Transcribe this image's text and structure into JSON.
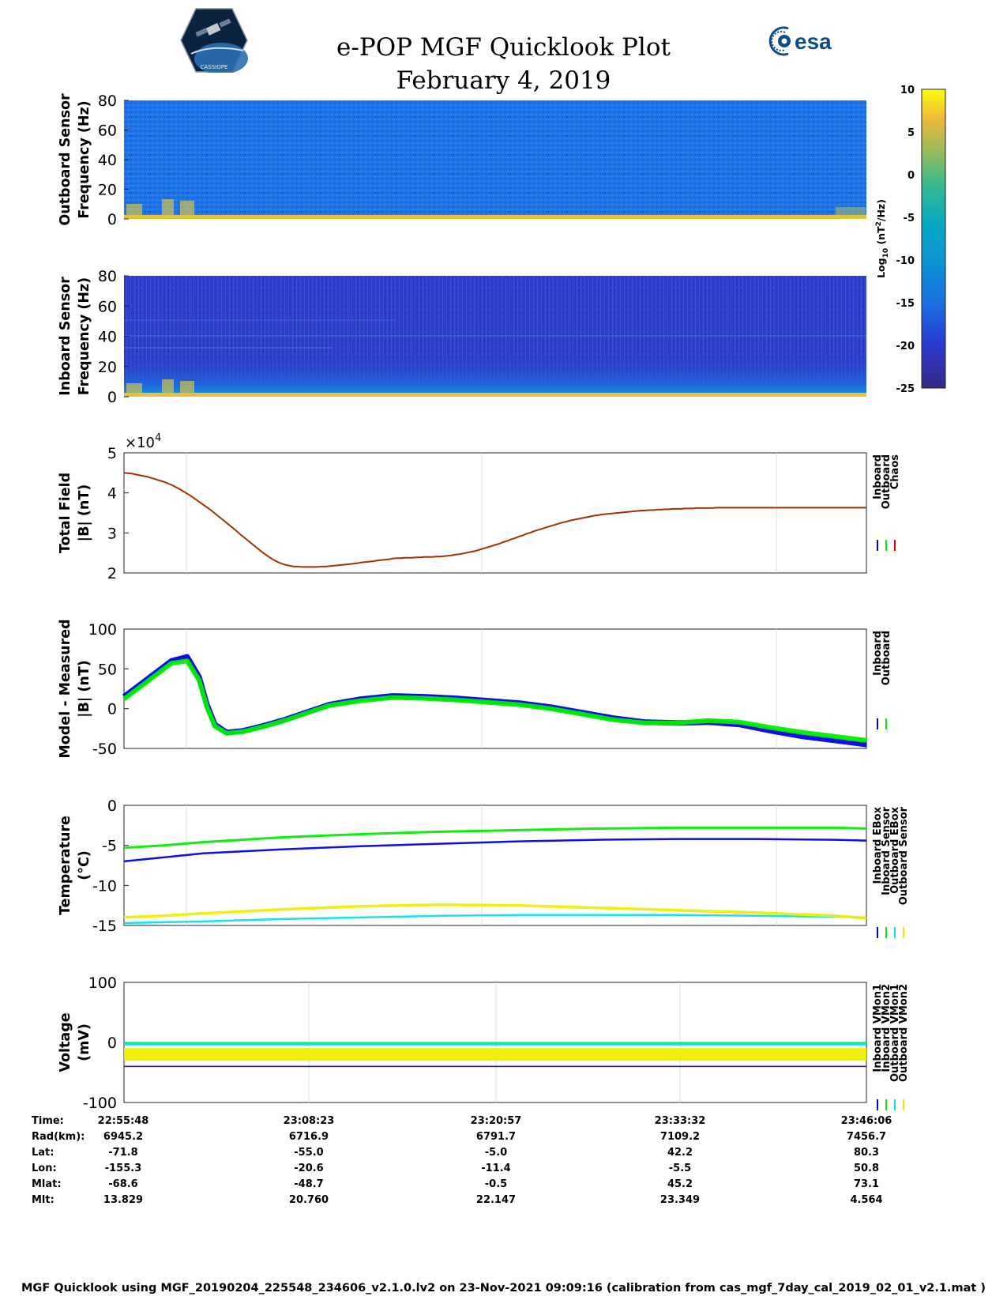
{
  "header": {
    "title": "e-POP MGF Quicklook Plot",
    "date": "February 4, 2019",
    "logo_left": "CASSIOPE",
    "logo_right": "esa"
  },
  "colorbar": {
    "label_base": "Log",
    "label_sub": "10",
    "label_unit": " (nT",
    "label_sup": "2",
    "label_tail": "/Hz)",
    "range": [
      -25,
      10
    ],
    "ticks": [
      "10",
      "5",
      "0",
      "-5",
      "-10",
      "-15",
      "-20",
      "-25"
    ]
  },
  "positions": {
    "rows": [
      {
        "label": "Time:",
        "values": [
          "22:55:48",
          "23:08:23",
          "23:20:57",
          "23:33:32",
          "23:46:06"
        ]
      },
      {
        "label": "Rad(km):",
        "values": [
          "6945.2",
          "6716.9",
          "6791.7",
          "7109.2",
          "7456.7"
        ]
      },
      {
        "label": "Lat:",
        "values": [
          "-71.8",
          "-55.0",
          "-5.0",
          "42.2",
          "80.3"
        ]
      },
      {
        "label": "Lon:",
        "values": [
          "-155.3",
          "-20.6",
          "-11.4",
          "-5.5",
          "50.8"
        ]
      },
      {
        "label": "Mlat:",
        "values": [
          "-68.6",
          "-48.7",
          "-0.5",
          "45.2",
          "73.1"
        ]
      },
      {
        "label": "Mlt:",
        "values": [
          "13.829",
          "20.760",
          "22.147",
          "23.349",
          "4.564"
        ]
      }
    ]
  },
  "footer": "MGF Quicklook using MGF_20190204_225548_234606_v2.1.0.lv2 on 23-Nov-2021 09:09:16 (calibration from cas_mgf_7day_cal_2019_02_01_v2.1.mat )",
  "colors": {
    "inboard": "#0000ee",
    "outboard": "#00ee00",
    "chaos": "#ee0000",
    "total_line": "#a33200",
    "cyan": "#00e5ee",
    "yellow": "#eeee00"
  },
  "chart_data": [
    {
      "type": "heatmap",
      "ylabel": [
        "Outboard Sensor",
        "Frequency (Hz)"
      ],
      "ylim": [
        0,
        80
      ],
      "yticks": [
        "80",
        "60",
        "40",
        "20",
        "0"
      ],
      "colorscale": "parula, log10 power"
    },
    {
      "type": "heatmap",
      "ylabel": [
        "Inboard Sensor",
        "Frequency (Hz)"
      ],
      "ylim": [
        0,
        80
      ],
      "yticks": [
        "80",
        "60",
        "40",
        "20",
        "0"
      ],
      "colorscale": "parula, log10 power"
    },
    {
      "type": "line",
      "ylabel": [
        "Total Field",
        "|B| (nT)"
      ],
      "multiplier": "×10",
      "multiplier_exp": "4",
      "ylim": [
        2,
        5
      ],
      "yticks": [
        "5",
        "4",
        "3",
        "2"
      ],
      "legend": [
        "Inboard",
        "Outboard",
        "Chaos"
      ],
      "x": [
        0,
        5,
        10,
        15,
        20,
        25,
        30,
        35,
        40,
        45,
        50,
        55,
        60,
        65,
        70,
        75,
        80,
        85,
        90,
        95,
        100,
        105,
        110,
        115,
        120,
        125,
        130,
        135,
        140,
        145,
        150,
        155,
        160,
        165,
        170,
        175,
        180,
        185,
        190,
        195,
        200,
        205,
        210,
        215,
        220,
        225,
        230,
        235,
        240,
        245,
        250,
        255,
        260,
        265,
        270,
        275,
        280,
        285,
        290,
        295,
        300,
        305,
        310,
        315,
        320,
        325,
        330,
        335,
        340,
        345,
        350,
        355,
        360,
        365,
        370,
        375,
        380,
        385,
        390,
        395,
        400,
        405,
        410,
        415,
        420,
        425,
        430,
        435,
        440,
        445,
        450,
        455,
        460,
        465,
        470,
        475,
        480,
        485,
        490,
        495,
        500,
        505,
        510,
        515,
        520,
        525,
        530,
        535,
        540,
        545,
        550,
        555,
        560,
        565,
        570,
        575,
        580,
        585,
        590,
        595,
        600,
        605,
        610,
        615,
        620,
        625,
        630,
        635,
        640,
        645,
        650,
        655,
        660,
        665,
        670,
        675,
        680,
        685,
        690,
        695,
        700,
        705,
        710,
        715,
        720,
        725,
        730,
        735,
        740,
        745,
        750,
        755,
        760,
        765,
        770,
        775,
        780,
        785,
        790,
        795,
        800,
        805,
        810,
        815,
        820,
        825,
        830,
        835,
        840,
        845,
        850,
        855,
        860,
        865,
        870,
        875,
        880,
        885,
        890,
        895,
        900,
        905,
        910,
        915,
        920,
        925,
        930,
        935,
        940
      ],
      "xrange": [
        0,
        940
      ],
      "values": [
        4.5,
        4.49,
        4.48,
        4.46,
        4.44,
        4.42,
        4.4,
        4.37,
        4.34,
        4.31,
        4.28,
        4.24,
        4.2,
        4.15,
        4.1,
        4.04,
        3.98,
        3.92,
        3.85,
        3.78,
        3.71,
        3.64,
        3.57,
        3.49,
        3.41,
        3.33,
        3.25,
        3.17,
        3.09,
        3.0,
        2.92,
        2.84,
        2.76,
        2.68,
        2.6,
        2.52,
        2.45,
        2.38,
        2.32,
        2.27,
        2.23,
        2.2,
        2.18,
        2.16,
        2.16,
        2.15,
        2.15,
        2.15,
        2.15,
        2.15,
        2.16,
        2.16,
        2.17,
        2.18,
        2.19,
        2.2,
        2.21,
        2.22,
        2.23,
        2.24,
        2.26,
        2.27,
        2.28,
        2.29,
        2.31,
        2.32,
        2.33,
        2.34,
        2.36,
        2.37,
        2.37,
        2.38,
        2.38,
        2.38,
        2.39,
        2.39,
        2.4,
        2.4,
        2.4,
        2.41,
        2.41,
        2.42,
        2.43,
        2.44,
        2.46,
        2.47,
        2.49,
        2.51,
        2.53,
        2.55,
        2.58,
        2.61,
        2.64,
        2.67,
        2.7,
        2.73,
        2.77,
        2.8,
        2.84,
        2.87,
        2.91,
        2.94,
        2.98,
        3.01,
        3.05,
        3.08,
        3.11,
        3.14,
        3.17,
        3.2,
        3.23,
        3.26,
        3.28,
        3.31,
        3.33,
        3.35,
        3.37,
        3.39,
        3.41,
        3.43,
        3.44,
        3.46,
        3.47,
        3.48,
        3.49,
        3.5,
        3.51,
        3.52,
        3.53,
        3.54,
        3.55,
        3.56,
        3.56,
        3.57,
        3.57,
        3.58,
        3.58,
        3.59,
        3.59,
        3.6,
        3.6,
        3.6,
        3.61,
        3.61,
        3.61,
        3.62,
        3.62,
        3.62,
        3.62,
        3.62,
        3.63,
        3.63,
        3.63,
        3.63,
        3.63,
        3.63,
        3.63,
        3.63,
        3.63,
        3.63,
        3.63,
        3.63,
        3.63,
        3.63,
        3.63,
        3.63,
        3.63,
        3.63,
        3.63,
        3.63,
        3.63,
        3.63,
        3.63,
        3.63,
        3.63,
        3.63,
        3.63,
        3.63,
        3.63,
        3.63,
        3.63,
        3.63,
        3.63,
        3.63,
        3.63,
        3.63,
        3.63,
        3.63,
        3.63
      ]
    },
    {
      "type": "line",
      "ylabel": [
        "Model - Measured",
        "|B| (nT)"
      ],
      "ylim": [
        -50,
        100
      ],
      "yticks": [
        "100",
        "50",
        "0",
        "-50"
      ],
      "legend": [
        "Inboard",
        "Outboard"
      ],
      "xrange": [
        0,
        940
      ],
      "x": [
        0,
        20,
        40,
        60,
        80,
        95,
        105,
        115,
        130,
        150,
        175,
        200,
        230,
        260,
        300,
        340,
        380,
        420,
        460,
        500,
        540,
        580,
        620,
        660,
        700,
        740,
        780,
        820,
        860,
        900,
        940
      ],
      "series": [
        {
          "name": "Inboard",
          "values": [
            15,
            30,
            45,
            60,
            65,
            40,
            5,
            -20,
            -30,
            -28,
            -22,
            -15,
            -5,
            5,
            12,
            16,
            15,
            13,
            10,
            7,
            2,
            -5,
            -12,
            -17,
            -18,
            -17,
            -20,
            -28,
            -35,
            -40,
            -45
          ]
        },
        {
          "name": "Outboard",
          "values": [
            12,
            27,
            42,
            57,
            60,
            36,
            2,
            -22,
            -31,
            -29,
            -23,
            -16,
            -6,
            4,
            10,
            14,
            13,
            11,
            8,
            5,
            0,
            -7,
            -14,
            -18,
            -18,
            -15,
            -17,
            -24,
            -30,
            -35,
            -40
          ]
        }
      ]
    },
    {
      "type": "line",
      "ylabel": [
        "Temperature",
        "(°C)"
      ],
      "ylim": [
        -15,
        0
      ],
      "yticks": [
        "0",
        "-5",
        "-10",
        "-15"
      ],
      "legend": [
        "Inboard EBox",
        "Inboard Sensor",
        "Outboard EBox",
        "Outboard Sensor"
      ],
      "xrange": [
        0,
        940
      ],
      "x": [
        0,
        50,
        100,
        200,
        300,
        400,
        500,
        600,
        700,
        800,
        900,
        940
      ],
      "series": [
        {
          "name": "Inboard EBox",
          "values": [
            -7.0,
            -6.5,
            -6.0,
            -5.5,
            -5.1,
            -4.8,
            -4.5,
            -4.3,
            -4.2,
            -4.2,
            -4.3,
            -4.4
          ]
        },
        {
          "name": "Inboard Sensor",
          "values": [
            -5.3,
            -5.0,
            -4.6,
            -4.0,
            -3.6,
            -3.3,
            -3.1,
            -2.9,
            -2.8,
            -2.8,
            -2.8,
            -2.9
          ]
        },
        {
          "name": "Outboard EBox",
          "values": [
            -14.7,
            -14.6,
            -14.5,
            -14.2,
            -14.0,
            -13.8,
            -13.7,
            -13.7,
            -13.7,
            -13.8,
            -13.9,
            -14.0
          ]
        },
        {
          "name": "Outboard Sensor",
          "values": [
            -14.0,
            -13.8,
            -13.5,
            -13.0,
            -12.6,
            -12.4,
            -12.5,
            -12.8,
            -13.1,
            -13.4,
            -13.8,
            -14.1
          ]
        }
      ]
    },
    {
      "type": "line",
      "ylabel": [
        "Voltage",
        "(mV)"
      ],
      "ylim": [
        -100,
        100
      ],
      "yticks": [
        "100",
        "0",
        "-100"
      ],
      "legend": [
        "Inboard VMon1",
        "Inboard VMon2",
        "Outboard VMon1",
        "Outboard VMon2"
      ],
      "xrange": [
        0,
        940
      ],
      "x": [
        0,
        940
      ],
      "series": [
        {
          "name": "Inboard VMon1",
          "values": [
            -40,
            -40
          ]
        },
        {
          "name": "Inboard VMon2",
          "values": [
            -2,
            -2
          ]
        },
        {
          "name": "Outboard VMon1",
          "values": [
            -3,
            -3
          ]
        },
        {
          "name": "Outboard VMon2",
          "values": [
            -20,
            -20
          ]
        }
      ]
    }
  ]
}
